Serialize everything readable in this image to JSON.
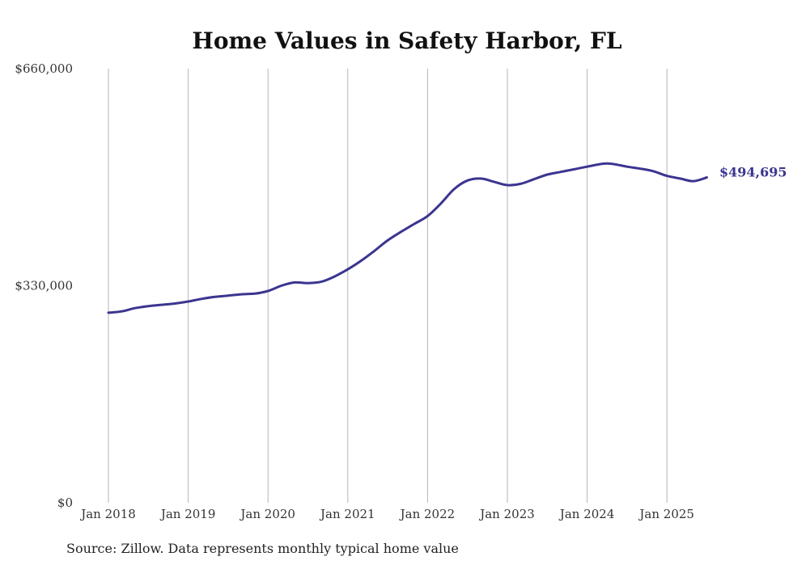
{
  "chart_data": {
    "type": "line",
    "title": "Home Values in Safety Harbor, FL",
    "source": "Source: Zillow. Data represents monthly typical home value",
    "ylim": [
      0,
      660000
    ],
    "y_ticks": [
      {
        "value": 0,
        "label": "$0"
      },
      {
        "value": 330000,
        "label": "$330,000"
      },
      {
        "value": 660000,
        "label": "$660,000"
      }
    ],
    "x_ticks": [
      {
        "value": "2018-01",
        "label": "Jan 2018"
      },
      {
        "value": "2019-01",
        "label": "Jan 2019"
      },
      {
        "value": "2020-01",
        "label": "Jan 2020"
      },
      {
        "value": "2021-01",
        "label": "Jan 2021"
      },
      {
        "value": "2022-01",
        "label": "Jan 2022"
      },
      {
        "value": "2023-01",
        "label": "Jan 2023"
      },
      {
        "value": "2024-01",
        "label": "Jan 2024"
      },
      {
        "value": "2025-01",
        "label": "Jan 2025"
      }
    ],
    "grid": {
      "vertical": true,
      "horizontal": false
    },
    "line_color": "#3b3590",
    "end_label": "$494,695",
    "series": [
      {
        "x": [
          "2018-01",
          "2018-03",
          "2018-05",
          "2018-07",
          "2018-09",
          "2018-11",
          "2019-01",
          "2019-03",
          "2019-05",
          "2019-07",
          "2019-09",
          "2019-11",
          "2020-01",
          "2020-03",
          "2020-05",
          "2020-07",
          "2020-09",
          "2020-11",
          "2021-01",
          "2021-03",
          "2021-05",
          "2021-07",
          "2021-09",
          "2021-11",
          "2022-01",
          "2022-03",
          "2022-05",
          "2022-07",
          "2022-09",
          "2022-11",
          "2023-01",
          "2023-03",
          "2023-05",
          "2023-07",
          "2023-09",
          "2023-11",
          "2024-01",
          "2024-04",
          "2024-07",
          "2024-09",
          "2024-11",
          "2025-01",
          "2025-03",
          "2025-05",
          "2025-07"
        ],
        "values": [
          289000,
          291000,
          296000,
          299000,
          301000,
          303000,
          306000,
          310000,
          313000,
          315000,
          317000,
          318000,
          322000,
          330000,
          335000,
          334000,
          336000,
          344000,
          355000,
          368000,
          383000,
          399000,
          412000,
          424000,
          436000,
          455000,
          477000,
          490000,
          493000,
          488000,
          483000,
          485000,
          492000,
          499000,
          503000,
          507000,
          511000,
          516000,
          511000,
          508000,
          504000,
          497000,
          493000,
          489000,
          494695
        ]
      }
    ]
  }
}
